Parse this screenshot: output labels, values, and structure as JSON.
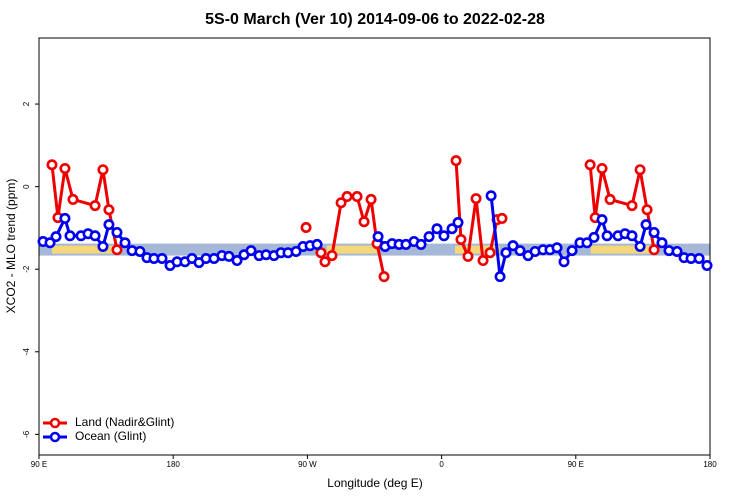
{
  "chart_data": {
    "type": "line",
    "title": "5S-0 March (Ver 10)   2014-09-06 to 2022-02-28",
    "x_label": "Longitude (deg E)",
    "y_label": "XCO2 - MLO trend (ppm)",
    "xlim": [
      90,
      540
    ],
    "ylim": [
      -6.5,
      3.6
    ],
    "xticks": [
      {
        "value": 90,
        "label": "90 E"
      },
      {
        "value": 180,
        "label": "180"
      },
      {
        "value": 270,
        "label": "90 W"
      },
      {
        "value": 360,
        "label": "0"
      },
      {
        "value": 450,
        "label": "90 E"
      },
      {
        "value": 540,
        "label": "180"
      }
    ],
    "yticks": [
      -6,
      -4,
      -2,
      0,
      2
    ],
    "legend": "bottomleft",
    "band": {
      "ylim": [
        -1.67,
        -1.38
      ],
      "color": "#a5b8d8",
      "land_color": "#f5d77a",
      "land_x": [
        [
          98.7,
          141
        ],
        [
          283,
          317
        ],
        [
          369,
          399
        ],
        [
          460,
          503
        ]
      ]
    },
    "series": [
      {
        "name": "Land (Nadir&Glint)",
        "color": "#ee0000",
        "x": [
          98.7,
          102.7,
          107.4,
          112.8,
          127.6,
          132.9,
          136.9,
          142.3,
          null,
          269.1,
          null,
          279.1,
          281.8,
          286.5,
          292.6,
          296.6,
          303.3,
          308.0,
          312.7,
          316.7,
          321.4,
          null,
          369.7,
          373.0,
          377.7,
          383.1,
          387.8,
          392.5,
          397.2,
          400.5,
          null,
          459.6,
          463.0,
          467.6,
          473.0,
          487.7,
          493.1,
          497.8,
          502.5
        ],
        "values": [
          0.53,
          -0.75,
          0.44,
          -0.31,
          -0.46,
          0.41,
          -0.56,
          -1.53,
          null,
          -0.99,
          null,
          -1.6,
          -1.82,
          -1.67,
          -0.39,
          -0.24,
          -0.24,
          -0.85,
          -0.31,
          -1.38,
          -2.18,
          null,
          0.63,
          -1.28,
          -1.69,
          -0.29,
          -1.79,
          -1.6,
          -0.8,
          -0.77,
          null,
          0.53,
          -0.75,
          0.44,
          -0.31,
          -0.46,
          0.41,
          -0.56,
          -1.53
        ]
      },
      {
        "name": "Ocean (Glint)",
        "color": "#0000ee",
        "x": [
          92.7,
          97.4,
          101.4,
          107.4,
          110.8,
          118.2,
          122.9,
          127.6,
          132.9,
          136.9,
          142.3,
          147.7,
          152.4,
          157.7,
          162.4,
          167.1,
          172.5,
          177.9,
          182.6,
          187.9,
          192.6,
          197.3,
          202.0,
          207.4,
          212.7,
          217.4,
          222.8,
          227.5,
          232.2,
          237.6,
          242.3,
          247.6,
          252.3,
          257.0,
          262.4,
          267.1,
          271.8,
          276.5,
          null,
          317.4,
          322.1,
          326.8,
          331.5,
          336.1,
          341.5,
          346.2,
          351.6,
          356.9,
          361.6,
          367.0,
          371.0,
          null,
          393.2,
          399.2,
          403.2,
          407.9,
          412.6,
          418.0,
          422.7,
          428.0,
          432.7,
          437.4,
          442.1,
          447.5,
          452.8,
          457.5,
          462.2,
          467.6,
          471.0,
          478.3,
          483.0,
          487.7,
          493.1,
          497.1,
          502.5,
          507.8,
          512.5,
          517.9,
          522.6,
          527.3,
          532.7,
          538.0
        ],
        "values": [
          -1.33,
          -1.36,
          -1.21,
          -0.77,
          -1.19,
          -1.19,
          -1.14,
          -1.19,
          -1.45,
          -0.92,
          -1.11,
          -1.36,
          -1.55,
          -1.57,
          -1.72,
          -1.74,
          -1.74,
          -1.91,
          -1.82,
          -1.82,
          -1.74,
          -1.84,
          -1.74,
          -1.74,
          -1.67,
          -1.69,
          -1.79,
          -1.65,
          -1.55,
          -1.67,
          -1.65,
          -1.67,
          -1.6,
          -1.6,
          -1.57,
          -1.45,
          -1.43,
          -1.4,
          null,
          -1.21,
          -1.45,
          -1.38,
          -1.4,
          -1.4,
          -1.33,
          -1.4,
          -1.21,
          -1.02,
          -1.19,
          -1.02,
          -0.87,
          null,
          -0.22,
          -2.18,
          -1.6,
          -1.43,
          -1.55,
          -1.67,
          -1.57,
          -1.53,
          -1.53,
          -1.48,
          -1.82,
          -1.55,
          -1.36,
          -1.36,
          -1.23,
          -0.8,
          -1.19,
          -1.19,
          -1.14,
          -1.19,
          -1.45,
          -0.92,
          -1.11,
          -1.36,
          -1.55,
          -1.57,
          -1.72,
          -1.74,
          -1.74,
          -1.91
        ]
      }
    ]
  }
}
